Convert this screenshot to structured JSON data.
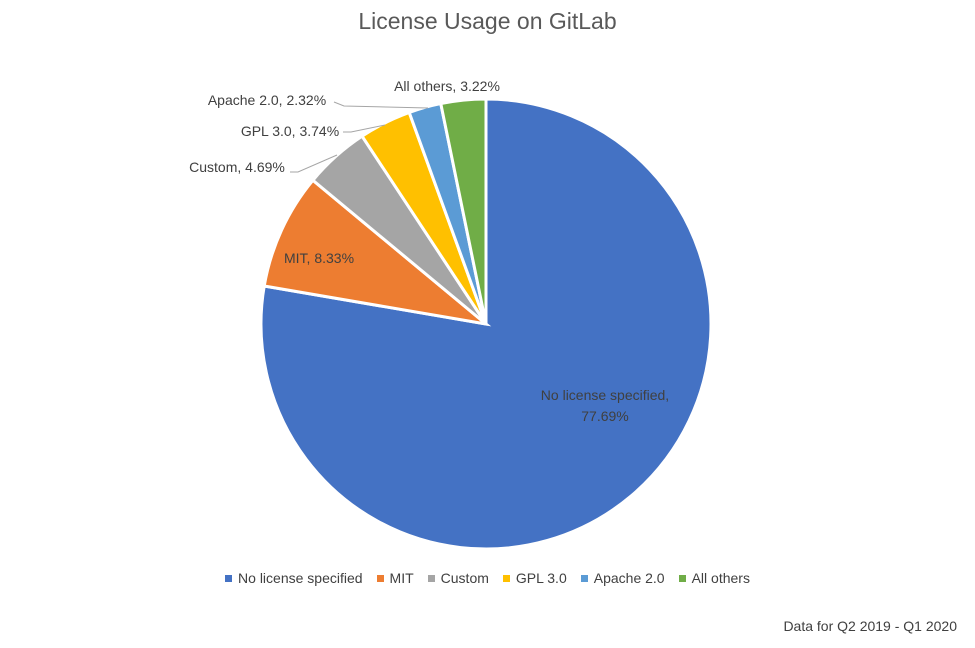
{
  "chart_data": {
    "type": "pie",
    "title": "License Usage on GitLab",
    "footnote": "Data for Q2 2019 - Q1 2020",
    "legend_position": "bottom",
    "slices": [
      {
        "label": "No license specified",
        "value": 77.69,
        "data_label": "No license specified,",
        "data_label_2": "77.69%",
        "color": "#4472C4"
      },
      {
        "label": "MIT",
        "value": 8.33,
        "data_label": "MIT, 8.33%",
        "color": "#ED7D31"
      },
      {
        "label": "Custom",
        "value": 4.69,
        "data_label": "Custom, 4.69%",
        "color": "#A5A5A5"
      },
      {
        "label": "GPL 3.0",
        "value": 3.74,
        "data_label": "GPL 3.0, 3.74%",
        "color": "#FFC000"
      },
      {
        "label": "Apache 2.0",
        "value": 2.32,
        "data_label": "Apache 2.0, 2.32%",
        "color": "#5B9BD5"
      },
      {
        "label": "All others",
        "value": 3.22,
        "data_label": "All others, 3.22%",
        "color": "#70AD47"
      }
    ]
  }
}
